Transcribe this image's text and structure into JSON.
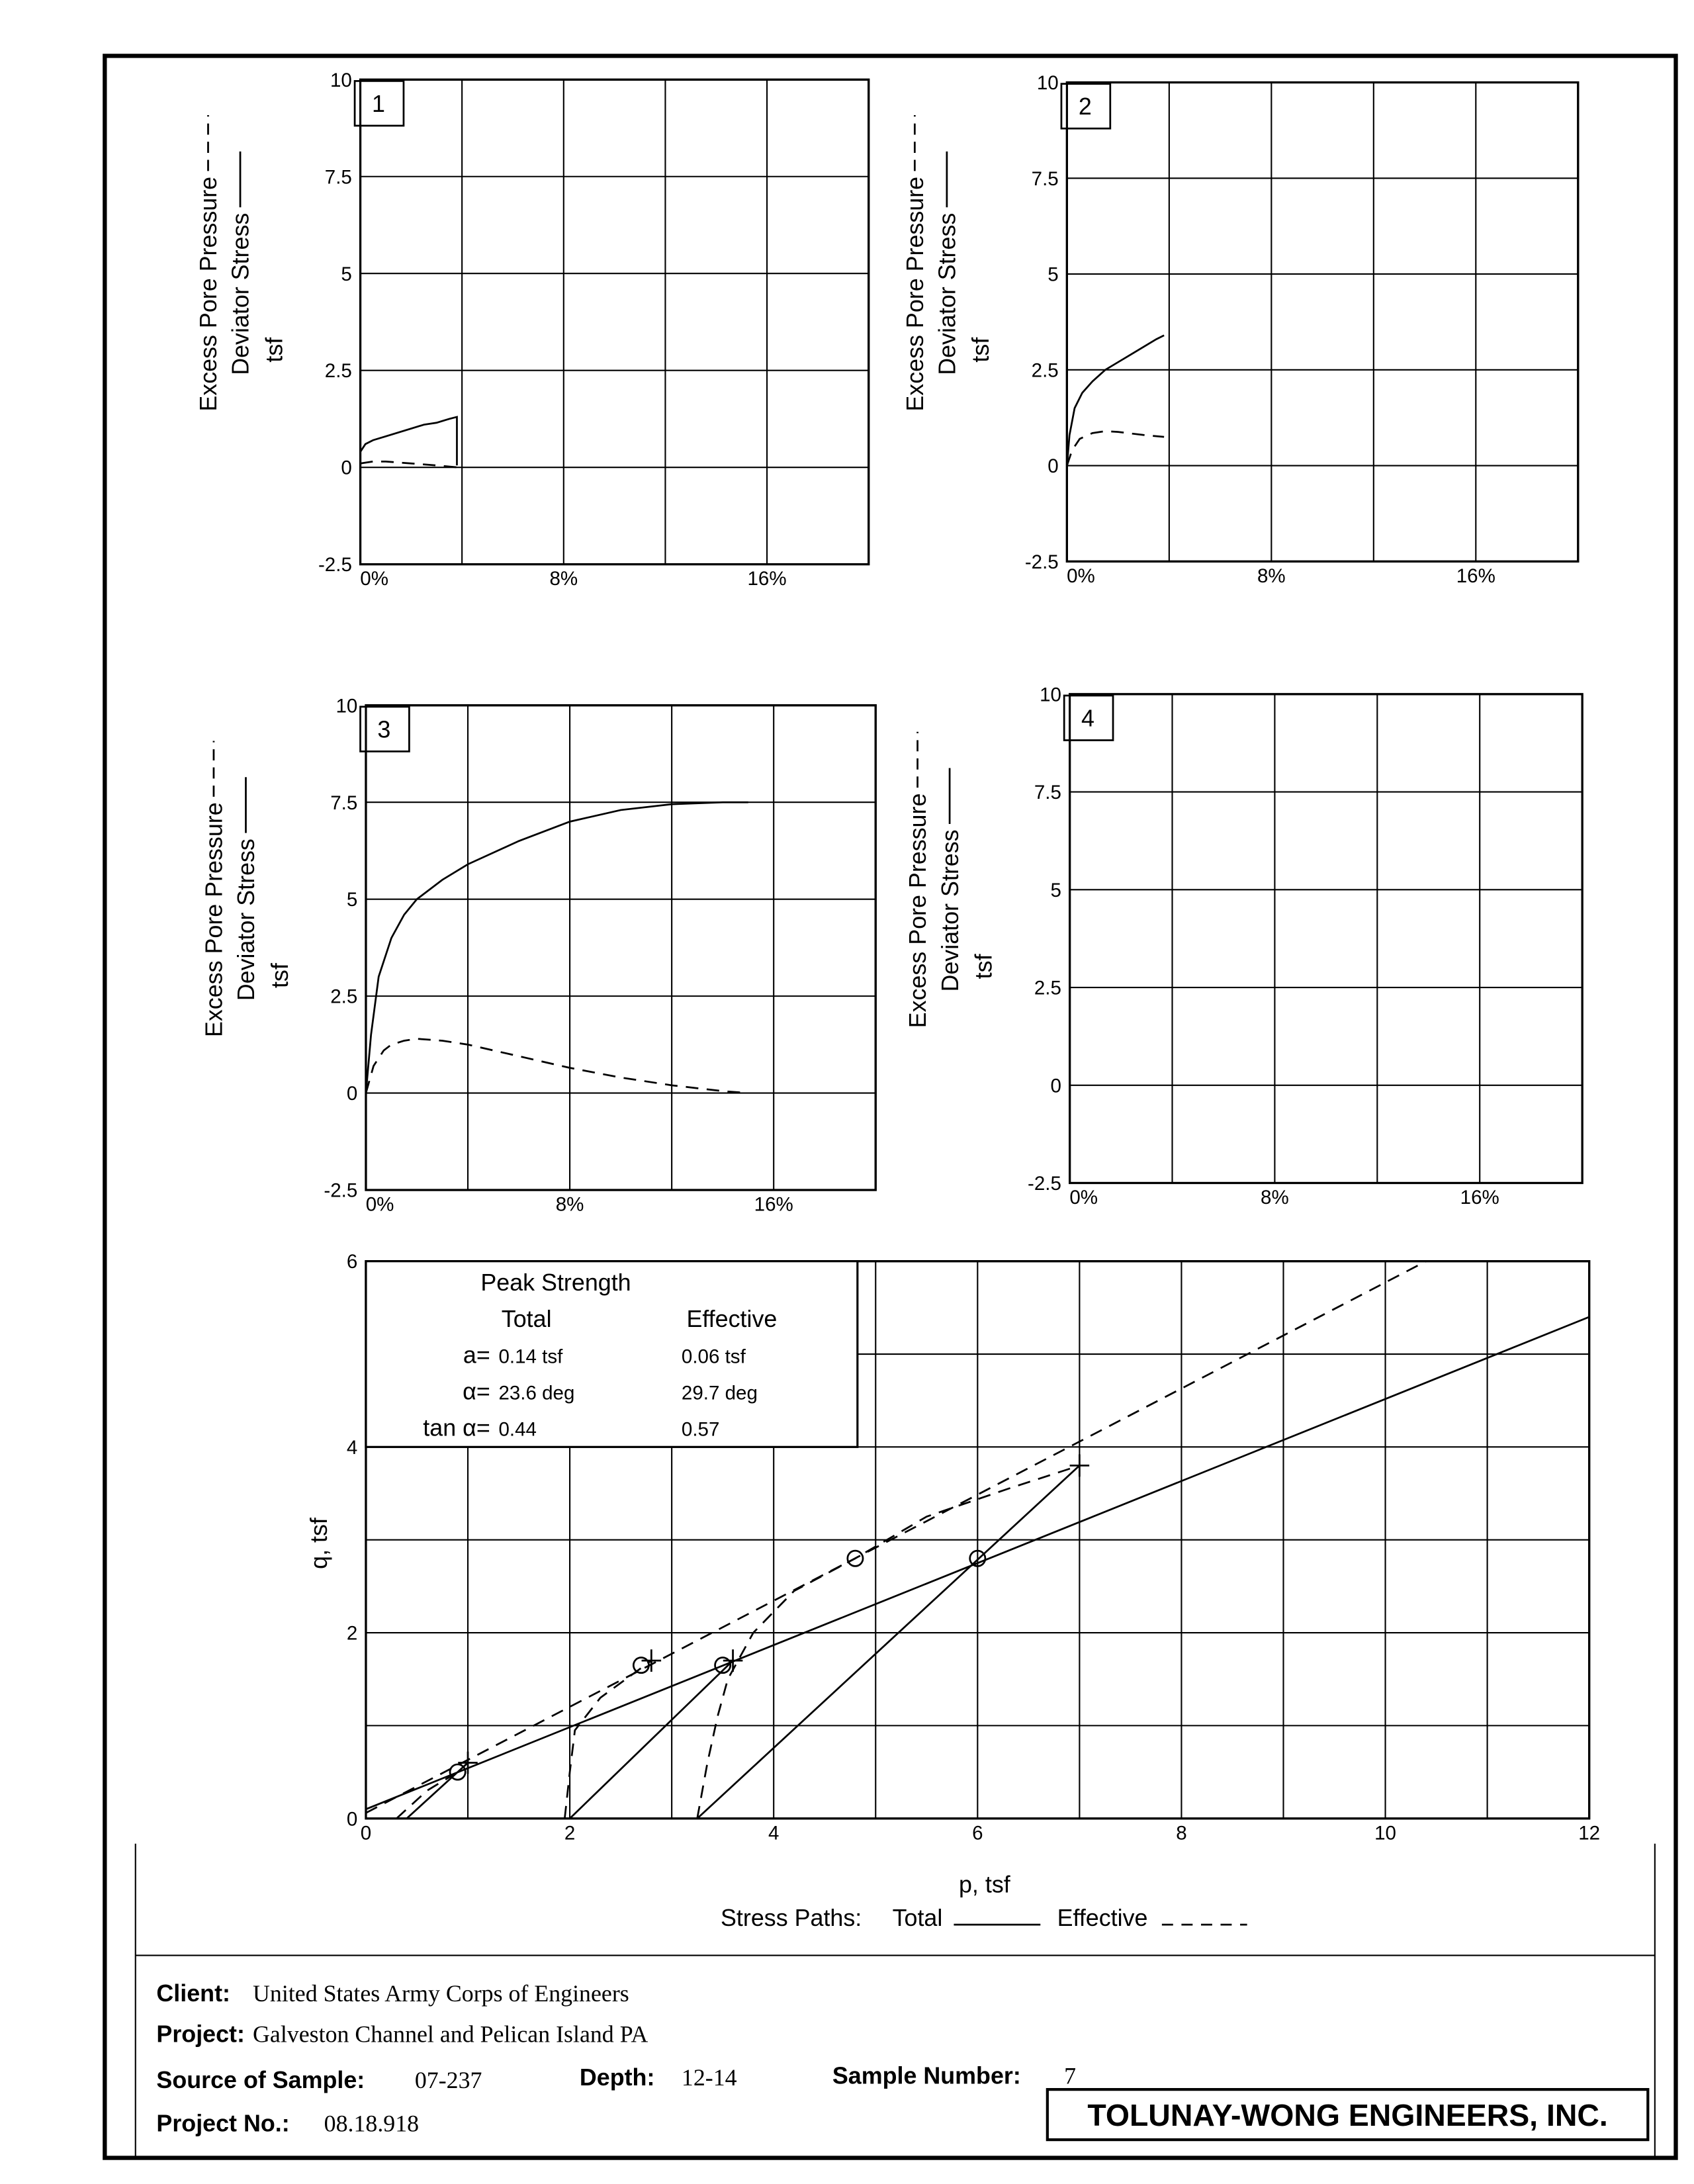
{
  "chart_data": [
    {
      "type": "line",
      "panel": "1",
      "y_unit": "tsf",
      "xlim": [
        0,
        20
      ],
      "ylim": [
        -2.5,
        10
      ],
      "xticks": [
        {
          "value": 0,
          "label": "0%"
        },
        {
          "value": 8,
          "label": "8%"
        },
        {
          "value": 16,
          "label": "16%"
        }
      ],
      "yticks": [
        -2.5,
        0,
        2.5,
        5,
        7.5,
        10
      ],
      "xgrid": [
        0,
        4,
        8,
        12,
        16,
        20
      ],
      "grid": true,
      "series": [
        {
          "name": "Deviator Stress",
          "style": "solid",
          "color": "#000000",
          "x": [
            0,
            0.2,
            0.5,
            1,
            1.5,
            2,
            2.5,
            3,
            3.5,
            3.8,
            3.8
          ],
          "values": [
            0.4,
            0.6,
            0.7,
            0.8,
            0.9,
            1.0,
            1.1,
            1.15,
            1.25,
            1.3,
            0.05
          ]
        },
        {
          "name": "Excess Pore Pressure",
          "style": "dashed",
          "color": "#000000",
          "x": [
            0,
            0.5,
            1,
            2,
            3,
            3.8
          ],
          "values": [
            0.1,
            0.15,
            0.15,
            0.1,
            0.05,
            0
          ]
        }
      ]
    },
    {
      "type": "line",
      "panel": "2",
      "y_unit": "tsf",
      "xlim": [
        0,
        20
      ],
      "ylim": [
        -2.5,
        10
      ],
      "xticks": [
        {
          "value": 0,
          "label": "0%"
        },
        {
          "value": 8,
          "label": "8%"
        },
        {
          "value": 16,
          "label": "16%"
        }
      ],
      "yticks": [
        -2.5,
        0,
        2.5,
        5,
        7.5,
        10
      ],
      "xgrid": [
        0,
        4,
        8,
        12,
        16,
        20
      ],
      "grid": true,
      "series": [
        {
          "name": "Deviator Stress",
          "style": "solid",
          "color": "#000000",
          "x": [
            0,
            0.1,
            0.3,
            0.6,
            1,
            1.5,
            2,
            2.5,
            3,
            3.5,
            3.8
          ],
          "values": [
            0,
            0.8,
            1.5,
            1.9,
            2.2,
            2.5,
            2.7,
            2.9,
            3.1,
            3.3,
            3.4
          ]
        },
        {
          "name": "Excess Pore Pressure",
          "style": "dashed",
          "color": "#000000",
          "x": [
            0,
            0.2,
            0.5,
            1,
            1.5,
            2,
            3,
            3.8
          ],
          "values": [
            0,
            0.4,
            0.7,
            0.85,
            0.9,
            0.88,
            0.8,
            0.75
          ]
        }
      ]
    },
    {
      "type": "line",
      "panel": "3",
      "y_unit": "tsf",
      "xlim": [
        0,
        20
      ],
      "ylim": [
        -2.5,
        10
      ],
      "xticks": [
        {
          "value": 0,
          "label": "0%"
        },
        {
          "value": 8,
          "label": "8%"
        },
        {
          "value": 16,
          "label": "16%"
        }
      ],
      "yticks": [
        -2.5,
        0,
        2.5,
        5,
        7.5,
        10
      ],
      "xgrid": [
        0,
        4,
        8,
        12,
        16,
        20
      ],
      "grid": true,
      "series": [
        {
          "name": "Deviator Stress",
          "style": "solid",
          "color": "#000000",
          "x": [
            0,
            0.2,
            0.5,
            1,
            1.5,
            2,
            3,
            4,
            6,
            8,
            10,
            12,
            14,
            15
          ],
          "values": [
            0,
            1.5,
            3,
            4,
            4.6,
            5,
            5.5,
            5.9,
            6.5,
            7,
            7.3,
            7.45,
            7.5,
            7.5
          ]
        },
        {
          "name": "Excess Pore Pressure",
          "style": "dashed",
          "color": "#000000",
          "x": [
            0,
            0.3,
            0.7,
            1,
            1.5,
            2,
            3,
            4,
            6,
            8,
            10,
            12,
            14,
            15
          ],
          "values": [
            0,
            0.7,
            1.1,
            1.25,
            1.35,
            1.4,
            1.35,
            1.25,
            0.95,
            0.65,
            0.4,
            0.2,
            0.05,
            0
          ]
        }
      ]
    },
    {
      "type": "line",
      "panel": "4",
      "y_unit": "tsf",
      "xlim": [
        0,
        20
      ],
      "ylim": [
        -2.5,
        10
      ],
      "xticks": [
        {
          "value": 0,
          "label": "0%"
        },
        {
          "value": 8,
          "label": "8%"
        },
        {
          "value": 16,
          "label": "16%"
        }
      ],
      "yticks": [
        -2.5,
        0,
        2.5,
        5,
        7.5,
        10
      ],
      "xgrid": [
        0,
        4,
        8,
        12,
        16,
        20
      ],
      "grid": true,
      "series": [
        {
          "name": "Deviator Stress",
          "style": "solid",
          "color": "#000000",
          "x": [],
          "values": []
        },
        {
          "name": "Excess Pore Pressure",
          "style": "dashed",
          "color": "#000000",
          "x": [],
          "values": []
        }
      ]
    },
    {
      "type": "line",
      "x_label": "p, tsf",
      "y_label": "q, tsf",
      "legend_title": "Stress Paths:",
      "xlim": [
        0,
        12
      ],
      "ylim": [
        0,
        6
      ],
      "xticks": [
        0,
        2,
        4,
        6,
        8,
        10,
        12
      ],
      "yticks": [
        0,
        2,
        4,
        6
      ],
      "xgrid": [
        0,
        1,
        2,
        3,
        4,
        5,
        6,
        7,
        8,
        9,
        10,
        11,
        12
      ],
      "ygrid": [
        0,
        1,
        2,
        3,
        4,
        5,
        6
      ],
      "grid": true,
      "series": [
        {
          "name": "Total",
          "style": "solid",
          "color": "#000000",
          "x": [
            0.4,
            1,
            null,
            2,
            3.6,
            null,
            3.25,
            7,
            null,
            0,
            12
          ],
          "values": [
            0,
            0.6,
            null,
            0,
            1.7,
            null,
            0,
            3.8,
            null,
            0.1,
            5.4
          ]
        },
        {
          "name": "Effective",
          "style": "dashed",
          "color": "#000000",
          "x": [
            0.3,
            0.6,
            0.9,
            1,
            null,
            1.95,
            2,
            2.05,
            2.3,
            2.8,
            null,
            3.25,
            3.35,
            3.45,
            3.55,
            3.8,
            4.2,
            4.8,
            5.5,
            6.3,
            7,
            null,
            0,
            10.4
          ],
          "values": [
            0,
            0.3,
            0.5,
            0.6,
            null,
            0,
            0.5,
            0.95,
            1.3,
            1.7,
            null,
            0,
            0.6,
            1.1,
            1.5,
            2.0,
            2.45,
            2.8,
            3.25,
            3.55,
            3.8,
            null,
            0.06,
            6
          ]
        }
      ],
      "markers": [
        {
          "shape": "circle",
          "x": [
            0.9,
            2.7,
            3.5,
            4.8,
            6
          ],
          "values": [
            0.5,
            1.65,
            1.65,
            2.8,
            2.8
          ]
        },
        {
          "shape": "plus",
          "x": [
            1,
            2.8,
            3.6,
            7
          ],
          "values": [
            0.6,
            1.7,
            1.7,
            3.8
          ]
        }
      ]
    }
  ],
  "peak_strength": {
    "title": "Peak Strength",
    "columns": [
      "Total",
      "Effective"
    ],
    "rows": [
      [
        "a=",
        "0.14 tsf",
        "0.06 tsf"
      ],
      [
        "α=",
        "23.6 deg",
        "29.7 deg"
      ],
      [
        "tan α=",
        "0.44",
        "0.57"
      ]
    ]
  },
  "footer": {
    "client_label": "Client:",
    "client": "United States Army Corps of Engineers",
    "project_label": "Project:",
    "project": "Galveston Channel and Pelican Island PA",
    "source_label": "Source of Sample:",
    "source": "07-237",
    "depth_label": "Depth:",
    "depth": "12-14",
    "sample_label": "Sample Number:",
    "sample": "7",
    "project_no_label": "Project No.:",
    "project_no": "08.18.918",
    "company": "TOLUNAY-WONG ENGINEERS, INC."
  }
}
